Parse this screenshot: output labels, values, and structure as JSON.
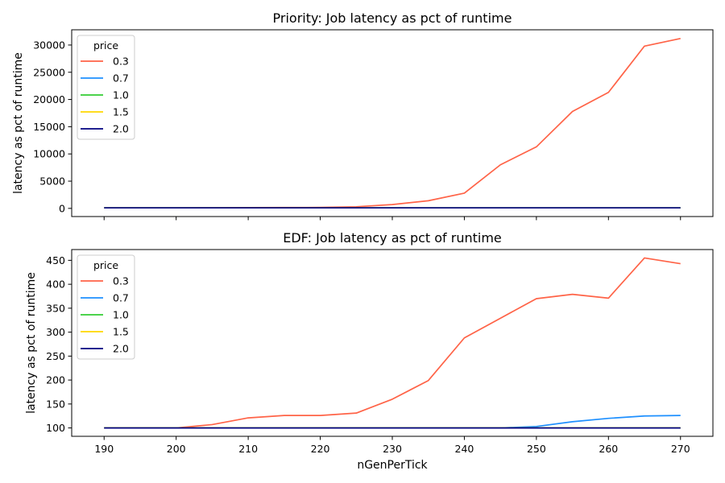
{
  "chart_data": [
    {
      "type": "line",
      "title": "Priority: Job latency as pct of runtime",
      "xlabel": "",
      "ylabel": "latency as pct of runtime",
      "xlim": [
        185.5,
        274.5
      ],
      "ylim": [
        -1500,
        32800
      ],
      "xticks": [
        190,
        200,
        210,
        220,
        230,
        240,
        250,
        260,
        270
      ],
      "xtick_labels": [
        "",
        "",
        "",
        "",
        "",
        "",
        "",
        "",
        ""
      ],
      "yticks": [
        0,
        5000,
        10000,
        15000,
        20000,
        25000,
        30000
      ],
      "ytick_labels": [
        "0",
        "5000",
        "10000",
        "15000",
        "20000",
        "25000",
        "30000"
      ],
      "grid": false,
      "legend": {
        "title": "price",
        "position": "upper-left"
      },
      "x": [
        190,
        195,
        200,
        205,
        210,
        215,
        220,
        225,
        230,
        235,
        240,
        245,
        250,
        255,
        260,
        265,
        270
      ],
      "series": [
        {
          "name": "0.3",
          "color": "#ff6347",
          "values": [
            100,
            100,
            100,
            110,
            140,
            160,
            180,
            300,
            700,
            1400,
            2800,
            8000,
            11300,
            17800,
            21300,
            29800,
            31200
          ]
        },
        {
          "name": "0.7",
          "color": "#1e90ff",
          "values": [
            100,
            100,
            100,
            100,
            100,
            100,
            100,
            100,
            100,
            100,
            100,
            100,
            100,
            100,
            100,
            100,
            100
          ]
        },
        {
          "name": "1.0",
          "color": "#32cd32",
          "values": [
            100,
            100,
            100,
            100,
            100,
            100,
            100,
            100,
            100,
            100,
            100,
            100,
            100,
            100,
            100,
            100,
            100
          ]
        },
        {
          "name": "1.5",
          "color": "#ffd700",
          "values": [
            100,
            100,
            100,
            100,
            100,
            100,
            100,
            100,
            100,
            100,
            100,
            100,
            100,
            100,
            100,
            100,
            100
          ]
        },
        {
          "name": "2.0",
          "color": "#000080",
          "values": [
            100,
            100,
            100,
            100,
            100,
            100,
            100,
            100,
            100,
            100,
            100,
            100,
            100,
            100,
            100,
            100,
            100
          ]
        }
      ]
    },
    {
      "type": "line",
      "title": "EDF: Job latency as pct of runtime",
      "xlabel": "nGenPerTick",
      "ylabel": "latency as pct of runtime",
      "xlim": [
        185.5,
        274.5
      ],
      "ylim": [
        82.5,
        472.5
      ],
      "xticks": [
        190,
        200,
        210,
        220,
        230,
        240,
        250,
        260,
        270
      ],
      "xtick_labels": [
        "190",
        "200",
        "210",
        "220",
        "230",
        "240",
        "250",
        "260",
        "270"
      ],
      "yticks": [
        100,
        150,
        200,
        250,
        300,
        350,
        400,
        450
      ],
      "ytick_labels": [
        "100",
        "150",
        "200",
        "250",
        "300",
        "350",
        "400",
        "450"
      ],
      "grid": false,
      "legend": {
        "title": "price",
        "position": "upper-left"
      },
      "x": [
        190,
        195,
        200,
        205,
        210,
        215,
        220,
        225,
        230,
        235,
        240,
        245,
        250,
        255,
        260,
        265,
        270
      ],
      "series": [
        {
          "name": "0.3",
          "color": "#ff6347",
          "values": [
            100,
            100,
            100,
            107,
            121,
            126,
            126,
            131,
            160,
            199,
            288,
            329,
            370,
            379,
            371,
            455,
            443
          ]
        },
        {
          "name": "0.7",
          "color": "#1e90ff",
          "values": [
            100,
            100,
            100,
            100,
            100,
            100,
            100,
            100,
            100,
            100,
            100,
            100,
            103,
            113,
            120,
            125,
            126
          ]
        },
        {
          "name": "1.0",
          "color": "#32cd32",
          "values": [
            100,
            100,
            100,
            100,
            100,
            100,
            100,
            100,
            100,
            100,
            100,
            100,
            100,
            100,
            100,
            100,
            100
          ]
        },
        {
          "name": "1.5",
          "color": "#ffd700",
          "values": [
            100,
            100,
            100,
            100,
            100,
            100,
            100,
            100,
            100,
            100,
            100,
            100,
            100,
            100,
            100,
            100,
            100
          ]
        },
        {
          "name": "2.0",
          "color": "#000080",
          "values": [
            100,
            100,
            100,
            100,
            100,
            100,
            100,
            100,
            100,
            100,
            100,
            100,
            100,
            100,
            100,
            100,
            100
          ]
        }
      ]
    }
  ]
}
